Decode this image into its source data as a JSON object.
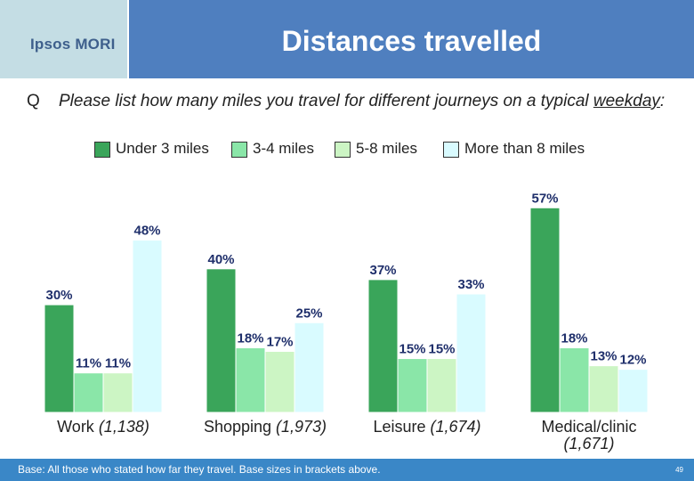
{
  "header": {
    "logo": "Ipsos MORI",
    "title": "Distances travelled"
  },
  "question": {
    "letter": "Q",
    "text_before": "Please list how many miles you travel for different journeys on a typical ",
    "text_underlined": "weekday",
    "text_after": ":"
  },
  "colors": {
    "header_bg": "#4f7fbf",
    "logo_bg": "#c4dde4",
    "footer_bg": "#3a87c7",
    "under3": "#3aa55a",
    "m3to4": "#8ae6a8",
    "m5to8": "#ccf5c4",
    "over8": "#d9fbff"
  },
  "chart_data": {
    "type": "bar",
    "categories": [
      "Work (1,138)",
      "Shopping (1,973)",
      "Leisure (1,674)",
      "Medical/clinic (1,671)"
    ],
    "category_labels": [
      {
        "name": "Work",
        "base": "(1,138)"
      },
      {
        "name": "Shopping",
        "base": "(1,973)"
      },
      {
        "name": "Leisure",
        "base": "(1,674)"
      },
      {
        "name": "Medical/clinic",
        "base": "(1,671)"
      }
    ],
    "series": [
      {
        "name": "Under 3 miles",
        "values": [
          30,
          40,
          37,
          57
        ],
        "color": "#3aa55a"
      },
      {
        "name": "3-4 miles",
        "values": [
          11,
          18,
          15,
          18
        ],
        "color": "#8ae6a8"
      },
      {
        "name": "5-8 miles",
        "values": [
          11,
          17,
          15,
          13
        ],
        "color": "#ccf5c4"
      },
      {
        "name": "More than 8 miles",
        "values": [
          48,
          25,
          33,
          12
        ],
        "color": "#d9fbff"
      }
    ],
    "value_suffix": "%",
    "legend_position": "top",
    "grid": false,
    "ylim": [
      0,
      60
    ]
  },
  "footer": {
    "base_text": "Base: All those who stated how far they travel. Base sizes in brackets above.",
    "page_number": "49"
  }
}
